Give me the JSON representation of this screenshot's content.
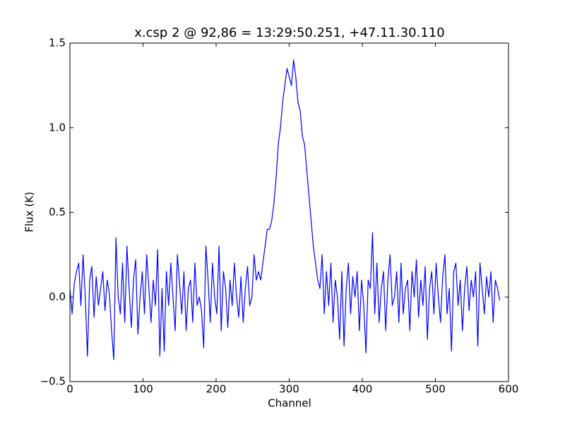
{
  "chart_data": {
    "type": "line",
    "title": "x.csp 2 @ 92,86 = 13:29:50.251, +47.11.30.110",
    "xlabel": "Channel",
    "ylabel": "Flux (K)",
    "color": "#0000ff",
    "xlim": [
      0,
      600
    ],
    "xticks": [
      0,
      100,
      200,
      300,
      400,
      500,
      600
    ],
    "ylim": [
      -0.5,
      1.5
    ],
    "yticks": [
      {
        "value": -0.5,
        "label": "−0.5"
      },
      {
        "value": 0,
        "label": "0.0"
      },
      0.5,
      {
        "value": 1,
        "label": "1.0"
      },
      1.5
    ],
    "x": [
      0,
      3,
      6,
      9,
      12,
      15,
      18,
      21,
      24,
      27,
      30,
      33,
      36,
      39,
      42,
      45,
      48,
      51,
      54,
      57,
      60,
      63,
      66,
      69,
      72,
      75,
      78,
      81,
      84,
      87,
      90,
      93,
      96,
      99,
      102,
      105,
      108,
      111,
      114,
      117,
      120,
      123,
      126,
      129,
      132,
      135,
      138,
      141,
      144,
      147,
      150,
      153,
      156,
      159,
      162,
      165,
      168,
      171,
      174,
      177,
      180,
      183,
      186,
      189,
      192,
      195,
      198,
      201,
      204,
      207,
      210,
      213,
      216,
      219,
      222,
      225,
      228,
      231,
      234,
      237,
      240,
      243,
      246,
      249,
      252,
      255,
      258,
      261,
      264,
      267,
      270,
      273,
      276,
      279,
      282,
      285,
      288,
      291,
      294,
      297,
      300,
      303,
      306,
      309,
      312,
      315,
      318,
      321,
      324,
      327,
      330,
      333,
      336,
      339,
      342,
      345,
      348,
      351,
      354,
      357,
      360,
      363,
      366,
      369,
      372,
      375,
      378,
      381,
      384,
      387,
      390,
      393,
      396,
      399,
      402,
      405,
      408,
      411,
      414,
      417,
      420,
      423,
      426,
      429,
      432,
      435,
      438,
      441,
      444,
      447,
      450,
      453,
      456,
      459,
      462,
      465,
      468,
      471,
      474,
      477,
      480,
      483,
      486,
      489,
      492,
      495,
      498,
      501,
      504,
      507,
      510,
      513,
      516,
      519,
      522,
      525,
      528,
      531,
      534,
      537,
      540,
      543,
      546,
      549,
      552,
      555,
      558,
      561,
      564,
      567,
      570,
      573,
      576,
      579,
      582,
      585,
      588
    ],
    "values": [
      0.05,
      -0.1,
      0.08,
      0.15,
      0.2,
      -0.05,
      0.25,
      0.0,
      -0.35,
      0.1,
      0.18,
      -0.12,
      0.12,
      -0.05,
      0.05,
      0.15,
      -0.08,
      0.1,
      0.02,
      -0.2,
      -0.37,
      0.35,
      0.0,
      -0.1,
      0.2,
      -0.15,
      0.3,
      0.05,
      -0.18,
      0.1,
      0.22,
      -0.22,
      0.0,
      0.15,
      -0.1,
      0.25,
      0.05,
      -0.15,
      0.1,
      -0.05,
      0.28,
      -0.35,
      0.05,
      -0.32,
      0.15,
      -0.05,
      0.2,
      0.0,
      -0.2,
      0.25,
      0.08,
      -0.1,
      0.15,
      -0.2,
      0.05,
      0.1,
      -0.15,
      0.2,
      -0.05,
      0.0,
      -0.08,
      -0.3,
      0.3,
      0.1,
      -0.15,
      0.2,
      0.0,
      -0.1,
      0.3,
      -0.2,
      0.15,
      0.05,
      -0.18,
      0.1,
      -0.05,
      0.2,
      0.0,
      -0.12,
      0.12,
      -0.15,
      0.05,
      0.18,
      -0.05,
      0.0,
      0.25,
      0.1,
      0.15,
      0.1,
      0.2,
      0.3,
      0.4,
      0.4,
      0.45,
      0.55,
      0.7,
      0.9,
      1.0,
      1.15,
      1.25,
      1.35,
      1.3,
      1.25,
      1.4,
      1.3,
      1.15,
      1.1,
      0.95,
      0.9,
      0.75,
      0.6,
      0.45,
      0.3,
      0.2,
      0.1,
      0.05,
      0.25,
      -0.1,
      0.15,
      -0.05,
      0.2,
      -0.15,
      0.1,
      0.0,
      -0.25,
      0.15,
      -0.29,
      0.05,
      0.2,
      -0.1,
      0.12,
      0.0,
      0.15,
      -0.2,
      0.1,
      -0.05,
      -0.33,
      0.1,
      0.05,
      0.38,
      -0.1,
      0.2,
      -0.15,
      0.05,
      0.15,
      -0.2,
      0.1,
      0.25,
      -0.05,
      0.0,
      0.15,
      -0.15,
      0.2,
      -0.1,
      0.05,
      0.1,
      -0.2,
      0.15,
      0.0,
      0.22,
      -0.12,
      0.1,
      -0.05,
      0.18,
      -0.25,
      0.05,
      0.15,
      -0.1,
      0.2,
      0.0,
      -0.15,
      0.12,
      0.25,
      -0.1,
      0.05,
      -0.32,
      0.15,
      0.2,
      -0.05,
      0.1,
      -0.2,
      0.05,
      0.18,
      -0.08,
      0.1,
      0.0,
      0.15,
      -0.29,
      0.2,
      0.05,
      -0.1,
      0.12,
      0.0,
      0.15,
      -0.15,
      0.1,
      0.05,
      -0.02
    ]
  }
}
